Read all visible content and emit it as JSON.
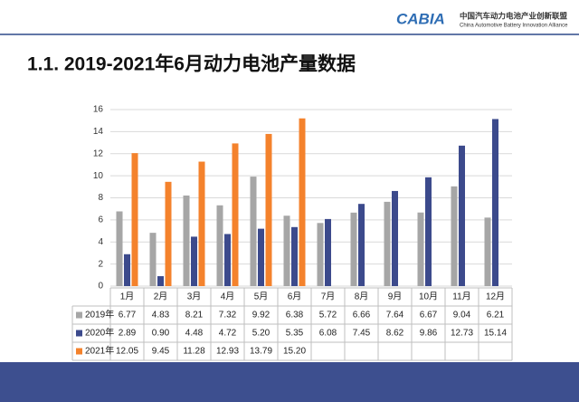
{
  "header": {
    "logo": "CABIA",
    "org_name": "中国汽车动力电池产业创新联盟",
    "org_name_en": "China Automotive Battery Innovation Alliance"
  },
  "chart_data": {
    "type": "bar",
    "title": "1.1. 2019-2021年6月动力电池产量数据",
    "categories": [
      "1月",
      "2月",
      "3月",
      "4月",
      "5月",
      "6月",
      "7月",
      "8月",
      "9月",
      "10月",
      "11月",
      "12月"
    ],
    "series": [
      {
        "name": "2019年",
        "color": "#a6a6a6",
        "values": [
          6.77,
          4.83,
          8.21,
          7.32,
          9.92,
          6.38,
          5.72,
          6.66,
          7.64,
          6.67,
          9.04,
          6.21
        ],
        "value_labels": [
          "6.77",
          "4.83",
          "8.21",
          "7.32",
          "9.92",
          "6.38",
          "5.72",
          "6.66",
          "7.64",
          "6.67",
          "9.04",
          "6.21"
        ]
      },
      {
        "name": "2020年",
        "color": "#3c4a8c",
        "values": [
          2.89,
          0.9,
          4.48,
          4.72,
          5.2,
          5.35,
          6.08,
          7.45,
          8.62,
          9.86,
          12.73,
          15.14
        ],
        "value_labels": [
          "2.89",
          "0.90",
          "4.48",
          "4.72",
          "5.20",
          "5.35",
          "6.08",
          "7.45",
          "8.62",
          "9.86",
          "12.73",
          "15.14"
        ]
      },
      {
        "name": "2021年",
        "color": "#f4822c",
        "values": [
          12.05,
          9.45,
          11.28,
          12.93,
          13.79,
          15.2,
          null,
          null,
          null,
          null,
          null,
          null
        ],
        "value_labels": [
          "12.05",
          "9.45",
          "11.28",
          "12.93",
          "13.79",
          "15.20",
          null,
          null,
          null,
          null,
          null,
          null
        ]
      }
    ],
    "ylim": [
      0,
      16
    ],
    "yticks": [
      0,
      2,
      4,
      6,
      8,
      10,
      12,
      14,
      16
    ],
    "grid": true
  }
}
